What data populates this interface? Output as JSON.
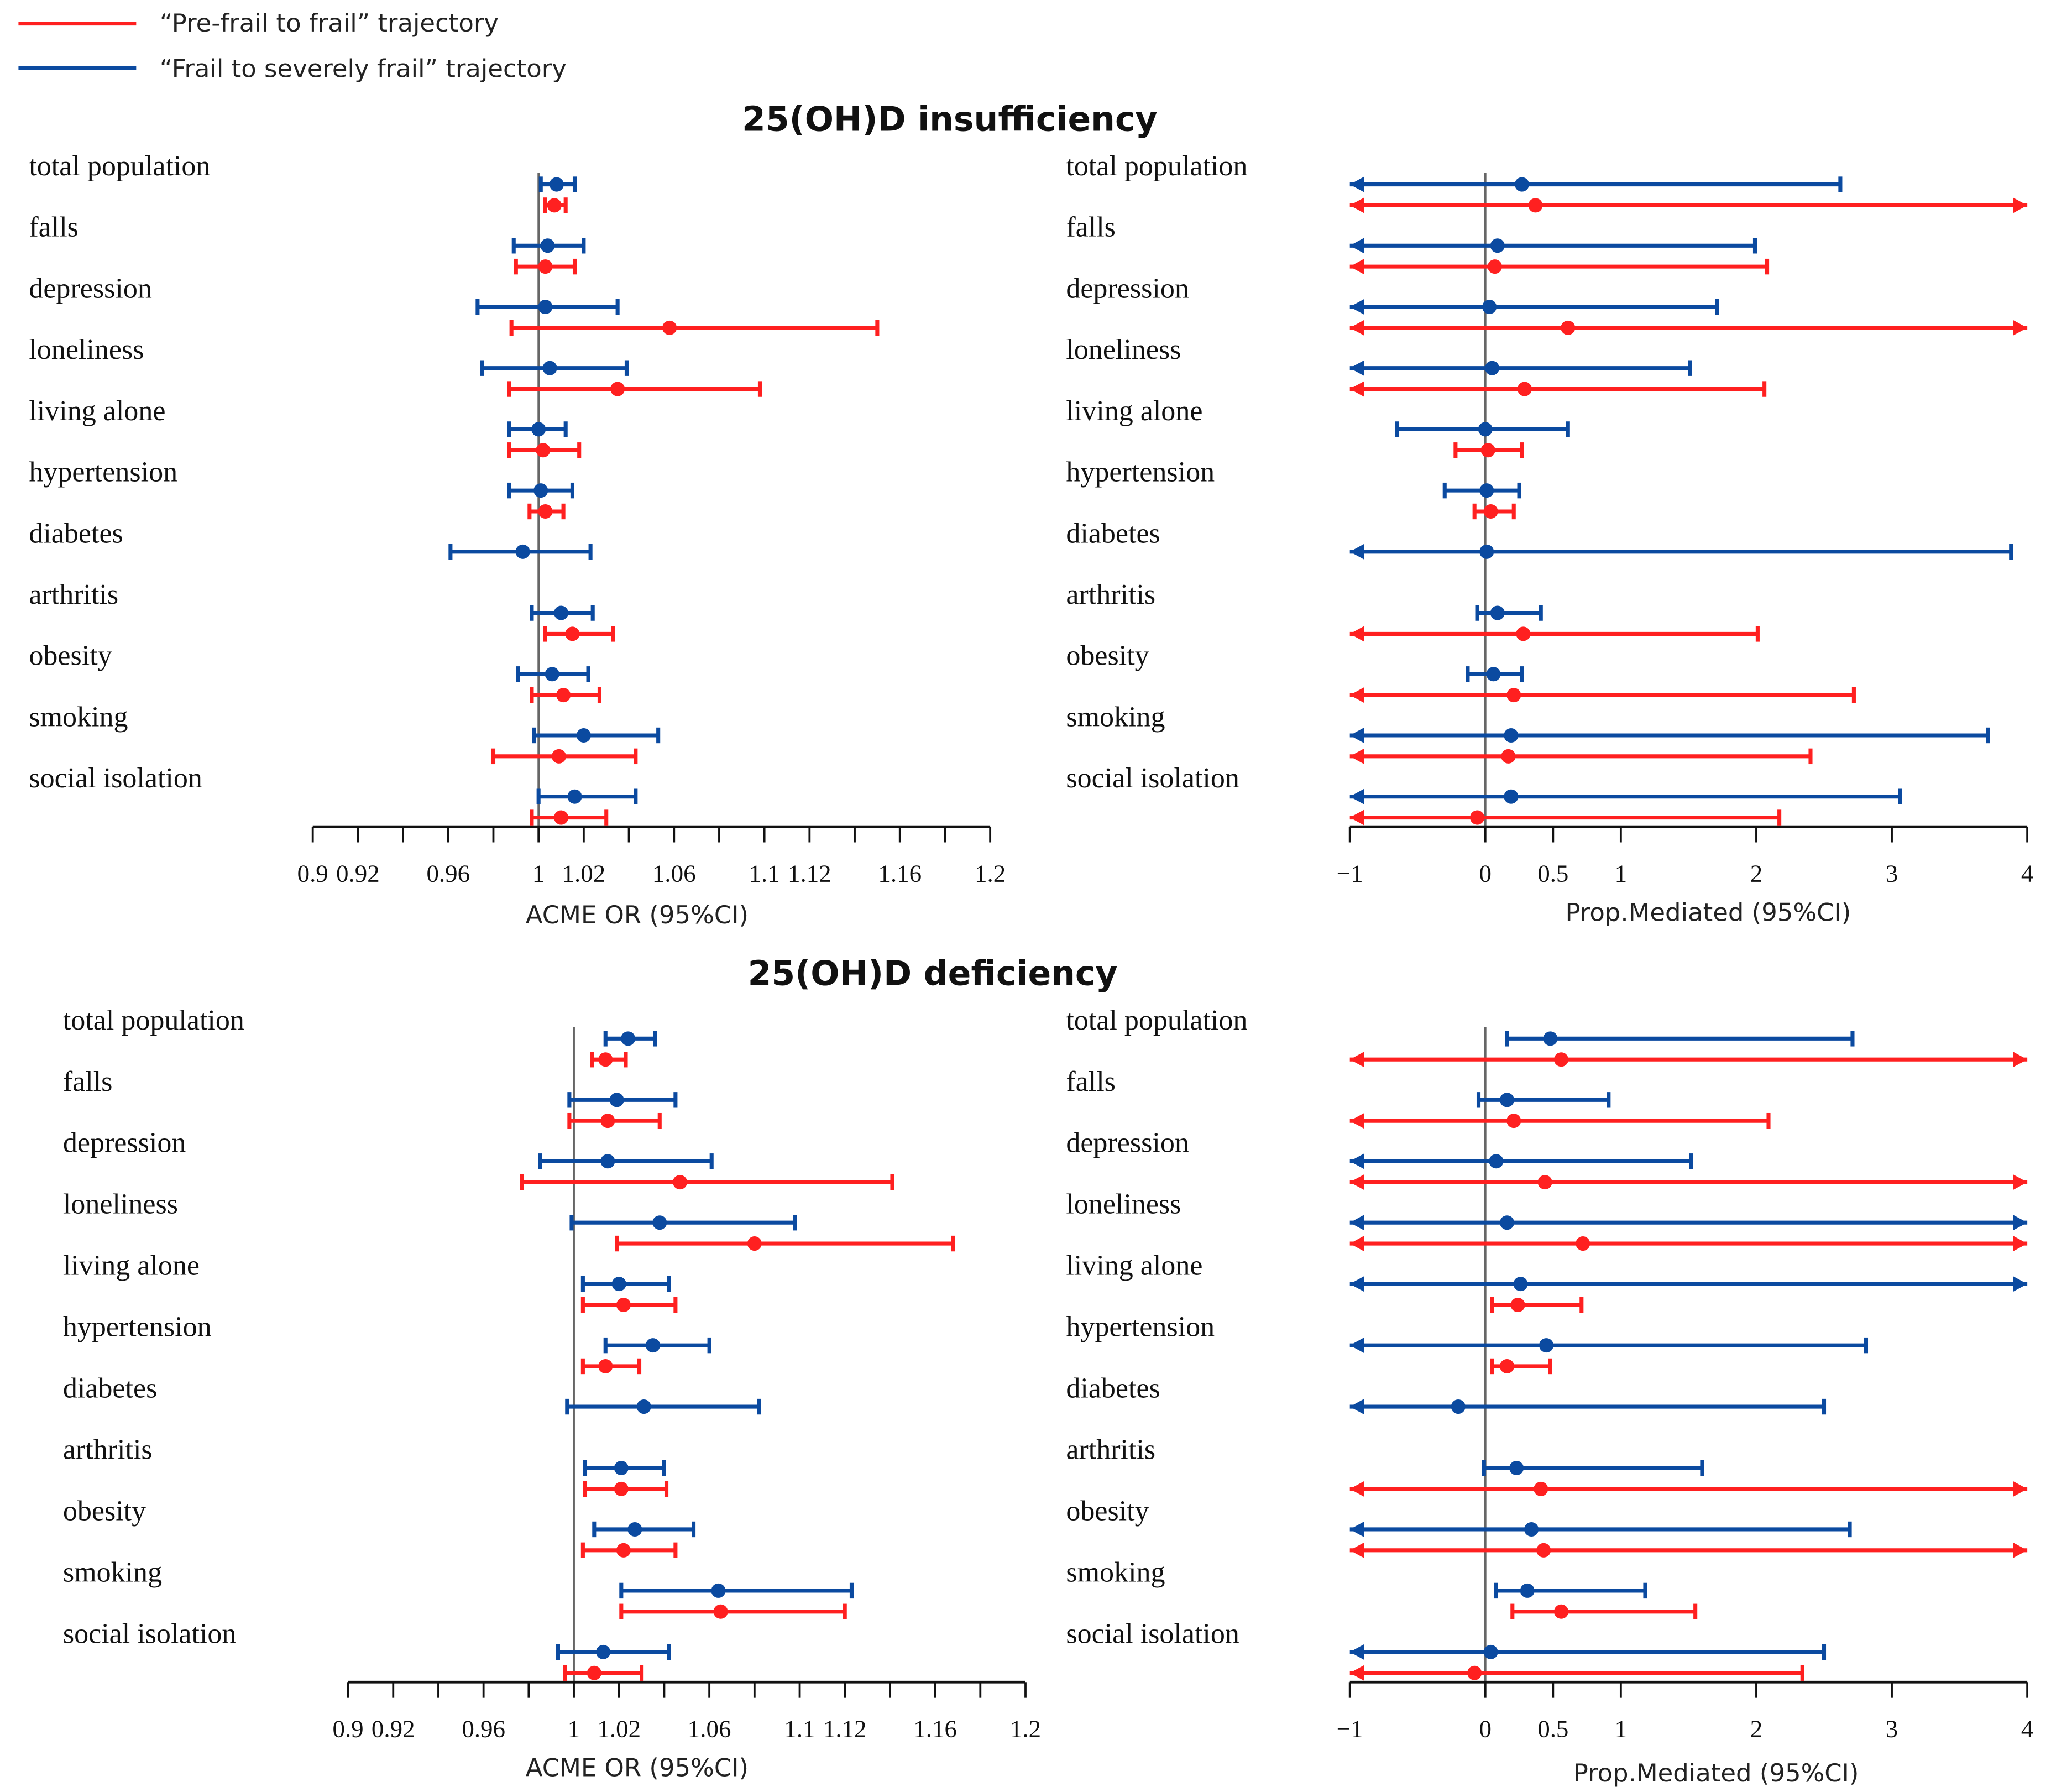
{
  "legend": [
    {
      "label": "“Pre-frail to frail” trajectory",
      "color": "#ff2020"
    },
    {
      "label": "“Frail to severely frail” trajectory",
      "color": "#0b4aa0"
    }
  ],
  "sections": [
    {
      "title": "25(OH)D insufficiency"
    },
    {
      "title": "25(OH)D deficiency"
    }
  ],
  "chart_data": [
    {
      "type": "forest",
      "section": "25(OH)D insufficiency",
      "xlabel": "ACME OR (95%CI)",
      "xlim": [
        0.9,
        1.2
      ],
      "reference": 1,
      "tick_step": 0.02,
      "tick_labels": [
        "0.9",
        "0.92",
        "0.96",
        "1",
        "1.02",
        "1.06",
        "1.1",
        "1.12",
        "1.16",
        "1.2"
      ],
      "tick_label_values": [
        0.9,
        0.92,
        0.96,
        1,
        1.02,
        1.06,
        1.1,
        1.12,
        1.16,
        1.2
      ],
      "categories": [
        "total population",
        "falls",
        "depression",
        "loneliness",
        "living alone",
        "hypertension",
        "diabetes",
        "arthritis",
        "obesity",
        "smoking",
        "social isolation"
      ],
      "series": [
        {
          "name": "Frail to severely frail",
          "color": "#0b4aa0",
          "point": [
            1.008,
            1.004,
            1.003,
            1.005,
            1.0,
            1.001,
            0.993,
            1.01,
            1.006,
            1.02,
            1.016
          ],
          "lo": [
            1.001,
            0.989,
            0.973,
            0.975,
            0.987,
            0.987,
            0.961,
            0.997,
            0.991,
            0.998,
            1.0
          ],
          "hi": [
            1.016,
            1.02,
            1.035,
            1.039,
            1.012,
            1.015,
            1.023,
            1.024,
            1.022,
            1.053,
            1.043
          ]
        },
        {
          "name": "Pre-frail to frail",
          "color": "#ff2020",
          "point": [
            1.007,
            1.003,
            1.058,
            1.035,
            1.002,
            1.003,
            null,
            1.015,
            1.011,
            1.009,
            1.01
          ],
          "lo": [
            1.003,
            0.99,
            0.988,
            0.987,
            0.987,
            0.996,
            null,
            1.003,
            0.997,
            0.98,
            0.997
          ],
          "hi": [
            1.012,
            1.016,
            1.15,
            1.098,
            1.018,
            1.011,
            null,
            1.033,
            1.027,
            1.043,
            1.03
          ]
        }
      ]
    },
    {
      "type": "forest",
      "section": "25(OH)D insufficiency",
      "xlabel": "Prop.Mediated (95%CI)",
      "xlim": [
        -1,
        4
      ],
      "reference": 0,
      "tick_labels": [
        "−1",
        "0",
        "0.5",
        "1",
        "2",
        "3",
        "4"
      ],
      "tick_label_values": [
        -1,
        0,
        0.5,
        1,
        2,
        3,
        4
      ],
      "categories": [
        "total population",
        "falls",
        "depression",
        "loneliness",
        "living alone",
        "hypertension",
        "diabetes",
        "arthritis",
        "obesity",
        "smoking",
        "social isolation"
      ],
      "series": [
        {
          "name": "Frail to severely frail",
          "color": "#0b4aa0",
          "point": [
            0.27,
            0.09,
            0.03,
            0.05,
            0.0,
            0.01,
            0.01,
            0.09,
            0.06,
            0.19,
            0.19
          ],
          "lo": [
            -1,
            -1,
            -1,
            -1,
            -0.65,
            -0.3,
            -1,
            -0.06,
            -0.13,
            -1,
            -1
          ],
          "hi": [
            2.62,
            1.99,
            1.71,
            1.51,
            0.61,
            0.25,
            3.88,
            0.41,
            0.27,
            3.71,
            3.06
          ]
        },
        {
          "name": "Pre-frail to frail",
          "color": "#ff2020",
          "point": [
            0.37,
            0.07,
            0.61,
            0.29,
            0.02,
            0.04,
            null,
            0.28,
            0.21,
            0.17,
            -0.06
          ],
          "lo": [
            -1,
            -1,
            -1,
            -1,
            -0.22,
            -0.08,
            null,
            -1,
            -1,
            -1,
            -1
          ],
          "hi": [
            4,
            2.08,
            4,
            2.06,
            0.27,
            0.21,
            null,
            2.01,
            2.72,
            2.4,
            2.17
          ]
        }
      ]
    },
    {
      "type": "forest",
      "section": "25(OH)D deficiency",
      "xlabel": "ACME OR (95%CI)",
      "xlim": [
        0.9,
        1.2
      ],
      "reference": 1,
      "tick_step": 0.02,
      "tick_labels": [
        "0.9",
        "0.92",
        "0.96",
        "1",
        "1.02",
        "1.06",
        "1.1",
        "1.12",
        "1.16",
        "1.2"
      ],
      "tick_label_values": [
        0.9,
        0.92,
        0.96,
        1,
        1.02,
        1.06,
        1.1,
        1.12,
        1.16,
        1.2
      ],
      "categories": [
        "total population",
        "falls",
        "depression",
        "loneliness",
        "living alone",
        "hypertension",
        "diabetes",
        "arthritis",
        "obesity",
        "smoking",
        "social isolation"
      ],
      "series": [
        {
          "name": "Frail to severely frail",
          "color": "#0b4aa0",
          "point": [
            1.024,
            1.019,
            1.015,
            1.038,
            1.02,
            1.035,
            1.031,
            1.021,
            1.027,
            1.064,
            1.013
          ],
          "lo": [
            1.014,
            0.998,
            0.985,
            0.999,
            1.004,
            1.014,
            0.997,
            1.005,
            1.009,
            1.021,
            0.993
          ],
          "hi": [
            1.036,
            1.045,
            1.061,
            1.098,
            1.042,
            1.06,
            1.082,
            1.04,
            1.053,
            1.123,
            1.042
          ]
        },
        {
          "name": "Pre-frail to frail",
          "color": "#ff2020",
          "point": [
            1.014,
            1.015,
            1.047,
            1.08,
            1.022,
            1.014,
            null,
            1.021,
            1.022,
            1.065,
            1.009
          ],
          "lo": [
            1.008,
            0.998,
            0.977,
            1.019,
            1.004,
            1.004,
            null,
            1.005,
            1.004,
            1.021,
            0.996
          ],
          "hi": [
            1.023,
            1.038,
            1.141,
            1.168,
            1.045,
            1.029,
            null,
            1.041,
            1.045,
            1.12,
            1.03
          ]
        }
      ]
    },
    {
      "type": "forest",
      "section": "25(OH)D deficiency",
      "xlabel": "Prop.Mediated (95%CI)",
      "xlim": [
        -1,
        4
      ],
      "reference": 0,
      "tick_labels": [
        "−1",
        "0",
        "0.5",
        "1",
        "2",
        "3",
        "4"
      ],
      "tick_label_values": [
        -1,
        0,
        0.5,
        1,
        2,
        3,
        4
      ],
      "categories": [
        "total population",
        "falls",
        "depression",
        "loneliness",
        "living alone",
        "hypertension",
        "diabetes",
        "arthritis",
        "obesity",
        "smoking",
        "social isolation"
      ],
      "series": [
        {
          "name": "Frail to severely frail",
          "color": "#0b4aa0",
          "point": [
            0.48,
            0.16,
            0.08,
            0.16,
            0.26,
            0.45,
            -0.2,
            0.23,
            0.34,
            0.31,
            0.04
          ],
          "lo": [
            0.16,
            -0.05,
            -1,
            -1,
            -1,
            -1,
            -1,
            -0.01,
            -1,
            0.08,
            -1
          ],
          "hi": [
            2.71,
            0.91,
            1.52,
            4,
            4,
            2.81,
            2.5,
            1.6,
            2.69,
            1.18,
            2.5
          ]
        },
        {
          "name": "Pre-frail to frail",
          "color": "#ff2020",
          "point": [
            0.56,
            0.21,
            0.44,
            0.72,
            0.24,
            0.16,
            null,
            0.41,
            0.43,
            0.56,
            -0.08
          ],
          "lo": [
            -1,
            -1,
            -1,
            -1,
            0.05,
            0.05,
            null,
            -1,
            -1,
            0.2,
            -1
          ],
          "hi": [
            4,
            2.09,
            4,
            4,
            0.71,
            0.48,
            null,
            4,
            4,
            1.55,
            2.34
          ]
        }
      ]
    }
  ]
}
